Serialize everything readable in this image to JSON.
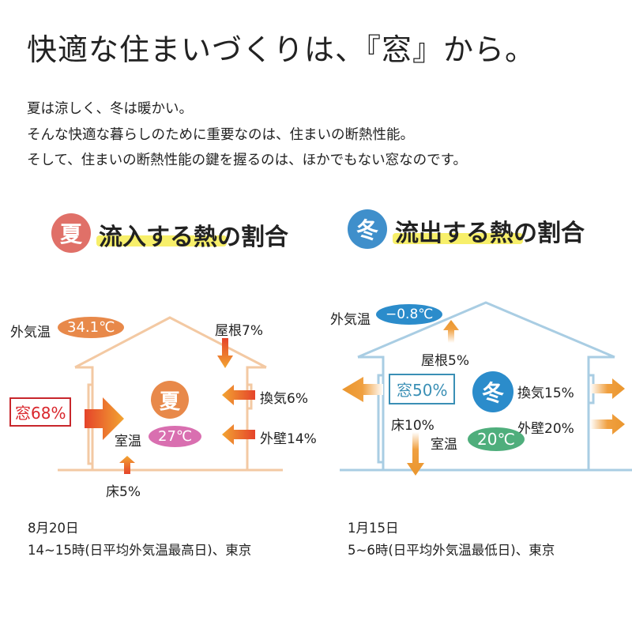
{
  "title": "快適な住まいづくりは、『窓』から。",
  "intro": [
    "夏は涼しく、冬は暖かい。",
    "そんな快適な暮らしのために重要なのは、住まいの断熱性能。",
    "そして、住まいの断熱性能の鍵を握るのは、ほかでもない窓なのです。"
  ],
  "summer": {
    "badge": "夏",
    "heading": "流入する熱の割合",
    "outside_label": "外気温",
    "outside_temp": "34.1℃",
    "room_label": "室温",
    "room_temp": "27℃",
    "center_badge": "夏",
    "window": "窓68%",
    "roof": "屋根7%",
    "ventilation": "換気6%",
    "wall": "外壁14%",
    "floor": "床5%",
    "date": "8月20日",
    "condition": "14~15時(日平均外気温最高日)、東京",
    "colors": {
      "badge": "#e07068",
      "house": "#f3c9a3",
      "pill": "#e8894a",
      "room_pill": "#d96fb0",
      "window": "#d9262c"
    }
  },
  "winter": {
    "badge": "冬",
    "heading": "流出する熱の割合",
    "outside_label": "外気温",
    "outside_temp": "−0.8℃",
    "room_label": "室温",
    "room_temp": "20℃",
    "center_badge": "冬",
    "window": "窓50%",
    "roof": "屋根5%",
    "ventilation": "換気15%",
    "wall": "外壁20%",
    "floor": "床10%",
    "date": "1月15日",
    "condition": "5~6時(日平均外気温最低日)、東京",
    "colors": {
      "badge": "#3f8fcb",
      "house": "#a9cde3",
      "pill": "#2b8ccb",
      "room_pill": "#4fae7c",
      "window": "#3a8fb5"
    }
  }
}
